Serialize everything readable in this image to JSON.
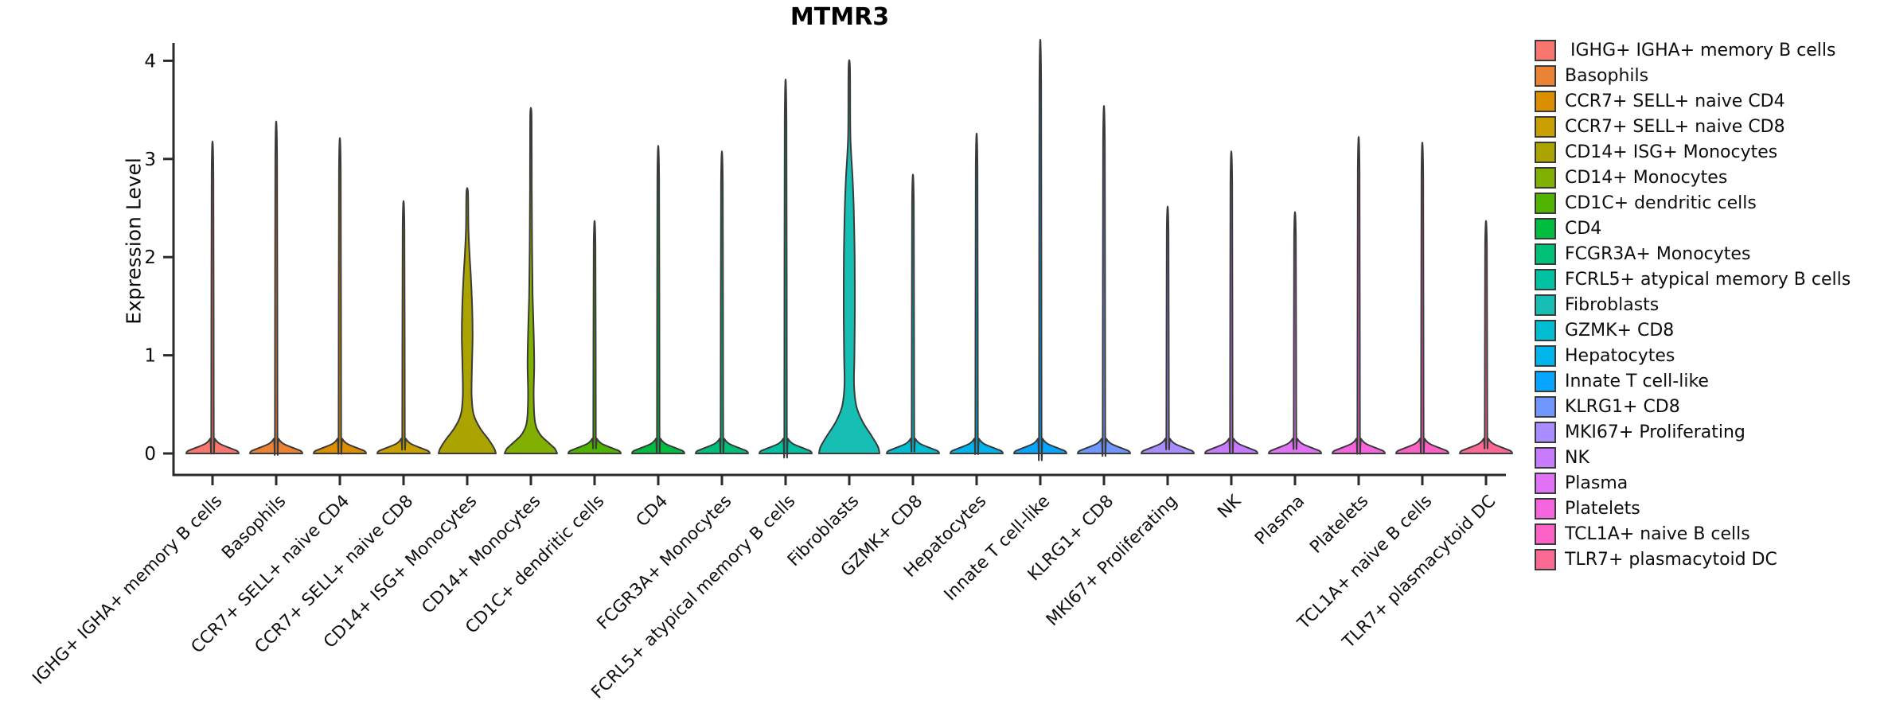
{
  "chart_data": {
    "type": "violin",
    "title": "MTMR3",
    "xlabel": "",
    "ylabel": "Expression Level",
    "ylim": [
      0,
      4
    ],
    "yticks": [
      "0",
      "1",
      "2",
      "3",
      "4"
    ],
    "grid": false,
    "legend_position": "right",
    "outline_color": "#3a3a3a",
    "axis_color": "#2a2a2a",
    "series": [
      {
        "name": "IGHG+ IGHA+ memory B cells",
        "color": "#F8766D",
        "max_expression": 2.85,
        "shape": "spike"
      },
      {
        "name": "Basophils",
        "color": "#EB8335",
        "max_expression": 3.03,
        "shape": "spike"
      },
      {
        "name": "CCR7+ SELL+ naive CD4",
        "color": "#DB8E00",
        "max_expression": 2.88,
        "shape": "spike"
      },
      {
        "name": "CCR7+ SELL+ naive CD8",
        "color": "#C9A000",
        "max_expression": 2.31,
        "shape": "spike"
      },
      {
        "name": "CD14+ ISG+ Monocytes",
        "color": "#ABA300",
        "max_expression": 2.66,
        "shape": "body",
        "profile": [
          [
            0,
            36
          ],
          [
            0.05,
            34
          ],
          [
            0.14,
            27
          ],
          [
            0.26,
            16
          ],
          [
            0.4,
            8
          ],
          [
            0.6,
            5.5
          ],
          [
            0.9,
            6
          ],
          [
            1.2,
            6.8
          ],
          [
            1.5,
            6.2
          ],
          [
            1.8,
            4.6
          ],
          [
            2.05,
            2.8
          ],
          [
            2.3,
            1.5
          ],
          [
            2.66,
            1
          ]
        ]
      },
      {
        "name": "CD14+ Monocytes",
        "color": "#82B000",
        "max_expression": 3.43,
        "shape": "body",
        "profile": [
          [
            0,
            33
          ],
          [
            0.05,
            30
          ],
          [
            0.11,
            22
          ],
          [
            0.2,
            11
          ],
          [
            0.33,
            5
          ],
          [
            0.6,
            3.5
          ],
          [
            0.9,
            4.2
          ],
          [
            1.2,
            3.6
          ],
          [
            1.6,
            2.2
          ],
          [
            2.1,
            1.5
          ],
          [
            2.7,
            1.1
          ],
          [
            3.43,
            0.9
          ]
        ]
      },
      {
        "name": "CD1C+ dendritic cells",
        "color": "#4FB300",
        "max_expression": 2.13,
        "shape": "spike"
      },
      {
        "name": "CD4",
        "color": "#00BC3F",
        "max_expression": 2.81,
        "shape": "spike"
      },
      {
        "name": "FCGR3A+ Monocytes",
        "color": "#00C079",
        "max_expression": 2.76,
        "shape": "spike"
      },
      {
        "name": "FCRL5+ atypical memory B cells",
        "color": "#00C1A2",
        "max_expression": 3.41,
        "shape": "spike"
      },
      {
        "name": "Fibroblasts",
        "color": "#16BEB3",
        "max_expression": 3.93,
        "shape": "body",
        "profile": [
          [
            0,
            38
          ],
          [
            0.07,
            36
          ],
          [
            0.18,
            28
          ],
          [
            0.32,
            17
          ],
          [
            0.48,
            9
          ],
          [
            0.7,
            6
          ],
          [
            1.0,
            6.5
          ],
          [
            1.5,
            7
          ],
          [
            2.0,
            6.8
          ],
          [
            2.5,
            5.6
          ],
          [
            2.8,
            4.2
          ],
          [
            3.05,
            2.4
          ],
          [
            3.3,
            1.3
          ],
          [
            3.93,
            0.9
          ]
        ]
      },
      {
        "name": "GZMK+ CD8",
        "color": "#00BDD2",
        "max_expression": 2.55,
        "shape": "spike"
      },
      {
        "name": "Hepatocytes",
        "color": "#00B5EC",
        "max_expression": 2.92,
        "shape": "spike"
      },
      {
        "name": "Innate T cell-like",
        "color": "#06A5FF",
        "max_expression": 3.77,
        "shape": "spike"
      },
      {
        "name": "KLRG1+ CD8",
        "color": "#7097FF",
        "max_expression": 3.17,
        "shape": "spike"
      },
      {
        "name": "MKI67+ Proliferating",
        "color": "#A98DFF",
        "max_expression": 2.26,
        "shape": "spike"
      },
      {
        "name": "NK",
        "color": "#C77CFF",
        "max_expression": 2.76,
        "shape": "spike"
      },
      {
        "name": "Plasma",
        "color": "#E273F6",
        "max_expression": 2.21,
        "shape": "spike"
      },
      {
        "name": "Platelets",
        "color": "#F465DE",
        "max_expression": 2.89,
        "shape": "spike"
      },
      {
        "name": "TCL1A+ naive B cells",
        "color": "#FD61C5",
        "max_expression": 2.84,
        "shape": "spike"
      },
      {
        "name": "TLR7+ plasmacytoid DC",
        "color": "#FC6A93",
        "max_expression": 2.13,
        "shape": "spike"
      }
    ]
  },
  "legend": {
    "labels": [
      " IGHG+ IGHA+ memory B cells",
      "Basophils",
      "CCR7+ SELL+ naive CD4",
      "CCR7+ SELL+ naive CD8",
      "CD14+ ISG+ Monocytes",
      "CD14+ Monocytes",
      "CD1C+ dendritic cells",
      "CD4",
      "FCGR3A+ Monocytes",
      "FCRL5+ atypical memory B cells",
      "Fibroblasts",
      "GZMK+ CD8",
      "Hepatocytes",
      "Innate T cell-like",
      "KLRG1+ CD8",
      "MKI67+ Proliferating",
      "NK",
      "Plasma",
      "Platelets",
      "TCL1A+ naive B cells",
      "TLR7+ plasmacytoid DC"
    ]
  }
}
